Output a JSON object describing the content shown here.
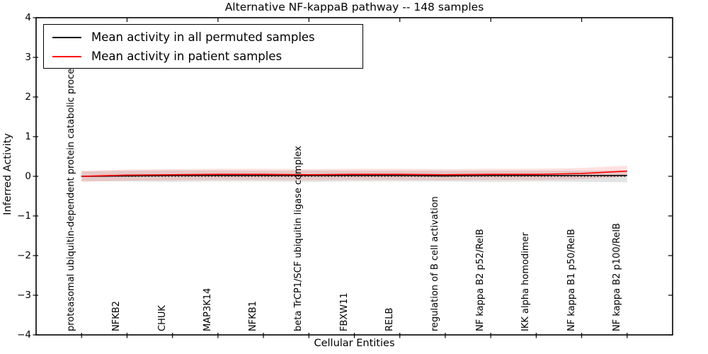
{
  "title": "Alternative NF-kappaB pathway -- 148 samples",
  "axis": {
    "xlabel": "Cellular Entities",
    "ylabel": "Inferred Activity"
  },
  "legend": {
    "entries": [
      {
        "label": "Mean activity in all permuted samples",
        "color": "#000000"
      },
      {
        "label": "Mean activity in patient samples",
        "color": "#ff0000"
      }
    ]
  },
  "chart_data": {
    "type": "line",
    "title": "Alternative NF-kappaB pathway -- 148 samples",
    "xlabel": "Cellular Entities",
    "ylabel": "Inferred Activity",
    "ylim": [
      -4,
      4
    ],
    "xlim": [
      0,
      14
    ],
    "grid": false,
    "legend_position": "upper left",
    "ytick_values": [
      4,
      3,
      2,
      1,
      0,
      -1,
      -2,
      -3,
      -4
    ],
    "ytick_labels": [
      "4",
      "3",
      "2",
      "1",
      "0",
      "−1",
      "−2",
      "−3",
      "−4"
    ],
    "top_tick_values": [
      2,
      4,
      6,
      8,
      10,
      12
    ],
    "categories": [
      "proteasomal ubiquitin-dependent protein catabolic process",
      "NFKB2",
      "CHUK",
      "MAP3K14",
      "NFKB1",
      "beta TrCP1/SCF ubiquitin ligase complex",
      "FBXW11",
      "RELB",
      "regulation of B cell activation",
      "NF kappa B2 p52/RelB",
      "IKK alpha homodimer",
      "NF kappa B1 p50/RelB",
      "NF kappa B2 p100/RelB"
    ],
    "x_positions": [
      1,
      2,
      3,
      4,
      5,
      6,
      7,
      8,
      9,
      10,
      11,
      12,
      13
    ],
    "series": [
      {
        "name": "Mean activity in all permuted samples",
        "color": "#000000",
        "style": "solid",
        "values": [
          0.0,
          0.01,
          0.02,
          0.02,
          0.02,
          0.02,
          0.02,
          0.02,
          0.01,
          0.02,
          0.02,
          0.02,
          0.02
        ]
      },
      {
        "name": "Mean activity in patient samples",
        "color": "#ff0000",
        "style": "solid",
        "values": [
          0.0,
          0.03,
          0.04,
          0.05,
          0.05,
          0.04,
          0.05,
          0.05,
          0.04,
          0.05,
          0.05,
          0.07,
          0.13
        ]
      }
    ],
    "bands": [
      {
        "name": "permuted-activity-range",
        "fill": "rgba(0,0,0,0.11)",
        "upper": [
          0.12,
          0.14,
          0.15,
          0.15,
          0.14,
          0.15,
          0.14,
          0.14,
          0.14,
          0.14,
          0.14,
          0.14,
          0.15
        ],
        "lower": [
          -0.12,
          -0.13,
          -0.14,
          -0.13,
          -0.13,
          -0.14,
          -0.13,
          -0.13,
          -0.13,
          -0.14,
          -0.13,
          -0.14,
          -0.15
        ]
      },
      {
        "name": "patient-activity-range",
        "fill": "rgba(255,0,0,0.12)",
        "upper": [
          0.14,
          0.17,
          0.18,
          0.19,
          0.19,
          0.18,
          0.19,
          0.19,
          0.18,
          0.19,
          0.19,
          0.21,
          0.27
        ],
        "lower": [
          -0.14,
          -0.11,
          -0.1,
          -0.09,
          -0.09,
          -0.1,
          -0.09,
          -0.09,
          -0.1,
          -0.09,
          -0.09,
          -0.07,
          -0.01
        ]
      }
    ],
    "reference_line": {
      "y": 0,
      "style": "dotted",
      "color": "#000000"
    }
  }
}
